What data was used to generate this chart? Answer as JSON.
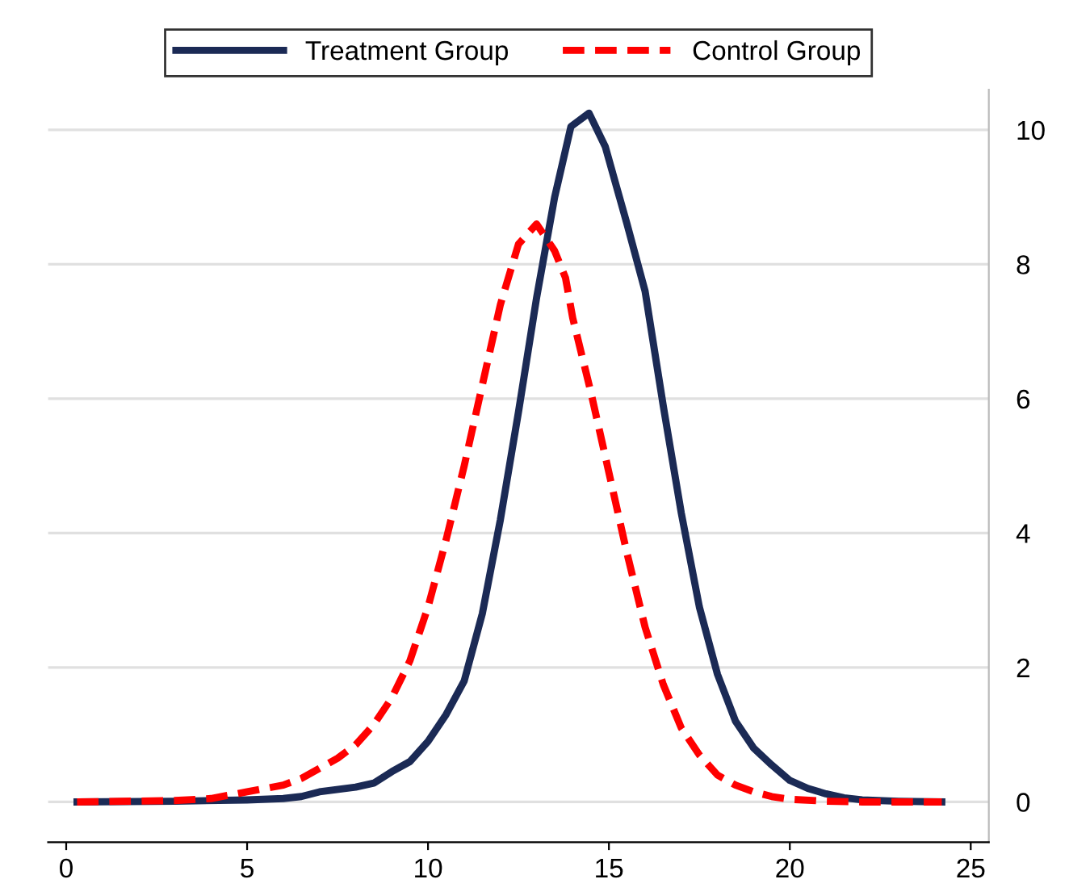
{
  "chart_data": {
    "type": "line",
    "xlim": [
      -0.5,
      25.5
    ],
    "xticks": [
      0,
      5,
      10,
      15,
      20,
      25
    ],
    "ylim": [
      -0.6,
      10.6
    ],
    "yticks": [
      0,
      2,
      4,
      6,
      8,
      10
    ],
    "grid": "y",
    "legend": "top",
    "marker": "none",
    "series": [
      {
        "name": "Treatment Group",
        "color": "#1b2a55",
        "line_style": "solid",
        "x": [
          0.3,
          3,
          5,
          6,
          6.5,
          7,
          8,
          8.5,
          9,
          9.5,
          10,
          10.5,
          11,
          11.5,
          12,
          12.5,
          13,
          13.5,
          13.95,
          14.45,
          14.9,
          15.5,
          16,
          16.5,
          17,
          17.5,
          18,
          18.5,
          19,
          19.5,
          20,
          20.5,
          21,
          21.5,
          22,
          23,
          24.2
        ],
        "values": [
          0,
          0.01,
          0.03,
          0.05,
          0.08,
          0.15,
          0.22,
          0.28,
          0.45,
          0.6,
          0.9,
          1.3,
          1.8,
          2.8,
          4.2,
          5.8,
          7.5,
          9.0,
          10.05,
          10.25,
          9.75,
          8.6,
          7.6,
          5.9,
          4.3,
          2.9,
          1.9,
          1.2,
          0.8,
          0.55,
          0.32,
          0.2,
          0.12,
          0.06,
          0.03,
          0.01,
          0
        ]
      },
      {
        "name": "Control Group",
        "color": "#ff0000",
        "line_style": "dashed",
        "x": [
          0.3,
          3,
          4,
          5,
          6,
          6.5,
          7,
          7.5,
          8,
          8.5,
          9,
          9.5,
          10,
          10.5,
          11,
          11.5,
          12,
          12.5,
          13,
          13.5,
          13.8,
          14,
          14.5,
          15,
          15.5,
          16,
          16.5,
          17,
          17.5,
          18,
          18.5,
          19,
          19.5,
          20,
          21,
          22,
          24.2
        ],
        "values": [
          0,
          0.02,
          0.05,
          0.15,
          0.25,
          0.35,
          0.5,
          0.65,
          0.85,
          1.15,
          1.55,
          2.1,
          2.9,
          3.9,
          5.0,
          6.2,
          7.4,
          8.3,
          8.6,
          8.2,
          7.8,
          7.2,
          6.1,
          4.9,
          3.7,
          2.6,
          1.75,
          1.1,
          0.7,
          0.4,
          0.25,
          0.15,
          0.08,
          0.04,
          0.01,
          0,
          0
        ]
      }
    ]
  }
}
